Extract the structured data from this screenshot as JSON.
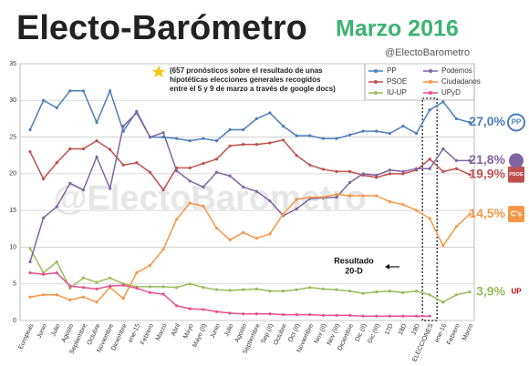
{
  "chart_data": {
    "type": "line",
    "title": "Electo-Barómetro",
    "subtitle": "Marzo 2016",
    "handle": "@ElectoBarometro",
    "watermark": "@ElectoBarometro",
    "note": [
      "(657 pronósticos sobre el resultado de unas",
      "hipotéticas elecciones generales recogidos",
      "entre el 5 y 9 de marzo a través de google docs)"
    ],
    "annotation": [
      "Resultado",
      "20-D"
    ],
    "categories": [
      "Europeas",
      "Junio",
      "Julio",
      "Agosto",
      "Septiembre",
      "Octubre",
      "Noviembre",
      "Diciembre",
      "ene-15",
      "Febrero",
      "Marzo",
      "Abril",
      "Mayo",
      "Mayo (II)",
      "Junio",
      "Julio",
      "Agosto",
      "Septiembre",
      "Sep (II)",
      "Octubre",
      "Oct (II)",
      "Noviembre",
      "Nov (II)",
      "Nov (III)",
      "Diciembre",
      "Dic (II)",
      "Dic (III)",
      "17D",
      "18D",
      "19D",
      "ELECCIONES",
      "ene-16",
      "Febrero",
      "Marzo"
    ],
    "series": [
      {
        "name": "PP",
        "color": "#4a7ebb",
        "end_label": "27,0%",
        "logo": "PP",
        "values": [
          26,
          30,
          29,
          31.3,
          31.3,
          27,
          31.3,
          25.8,
          28.5,
          25,
          25,
          24.8,
          24.5,
          24.8,
          24.5,
          26,
          26,
          27.5,
          28.3,
          26.5,
          25.2,
          25.2,
          24.8,
          24.8,
          25.3,
          25.8,
          25.8,
          25.5,
          26.5,
          25.5,
          28.7,
          29.8,
          27.5,
          27
        ]
      },
      {
        "name": "PSOE",
        "color": "#c0504d",
        "end_label": "19,9%",
        "logo": "PSOE",
        "values": [
          23,
          19.3,
          21.5,
          23.4,
          23.4,
          24.5,
          23.3,
          21.2,
          21.5,
          20.2,
          17.8,
          20.8,
          20.8,
          21.4,
          22,
          23.8,
          24,
          24,
          24.2,
          24.6,
          22.5,
          21.2,
          20.6,
          20.3,
          20.3,
          19.8,
          19.5,
          20,
          20,
          20.5,
          22,
          20.3,
          20.7,
          19.9
        ]
      },
      {
        "name": "IU-UP",
        "color": "#9bbb59",
        "end_label": "3,9%",
        "logo": "UP",
        "values": [
          9.8,
          6.5,
          8,
          4.4,
          5.8,
          5.2,
          5.8,
          5,
          4.6,
          4.6,
          4.6,
          4.5,
          5,
          4.5,
          4.2,
          4.1,
          4.2,
          4.3,
          4,
          4,
          4.2,
          4.5,
          4.3,
          4.2,
          4,
          3.7,
          3.9,
          4,
          3.8,
          4,
          3.5,
          2.5,
          3.5,
          3.9
        ]
      },
      {
        "name": "Podemos",
        "color": "#8064a2",
        "end_label": "21,8%",
        "values": [
          8,
          14,
          15.5,
          18.7,
          17.8,
          22.3,
          18,
          26.5,
          28.3,
          25,
          25.6,
          20.4,
          19,
          18.2,
          20.2,
          19.7,
          18.2,
          17.6,
          16.3,
          14.3,
          15.2,
          16.6,
          16.7,
          16.8,
          18.8,
          20,
          19.8,
          20.5,
          20.3,
          20.7,
          20.7,
          23.4,
          21.8,
          21.8
        ]
      },
      {
        "name": "Ciudadanos",
        "color": "#f79646",
        "end_label": "14,5%",
        "logo": "C's",
        "values": [
          3.2,
          3.5,
          3.5,
          2.8,
          3.2,
          2.5,
          4.5,
          3,
          6.5,
          7.5,
          9.7,
          13.8,
          16,
          15.6,
          12.6,
          11,
          12,
          11.2,
          11.8,
          14.5,
          16.5,
          16.8,
          16.8,
          17.2,
          17,
          17,
          17,
          16.2,
          15.8,
          15,
          13.9,
          10.2,
          12.8,
          14.5
        ]
      },
      {
        "name": "UPyD",
        "color": "#e8508f",
        "values": [
          6.5,
          6.3,
          6.5,
          4.7,
          4.5,
          4.3,
          4.7,
          4.8,
          4.4,
          3.8,
          3.6,
          2,
          1.6,
          1.5,
          1.2,
          1,
          0.9,
          0.9,
          0.9,
          0.8,
          0.8,
          0.8,
          0.7,
          0.7,
          0.7,
          0.6,
          0.6,
          0.6,
          0.6,
          0.6,
          0.6,
          null,
          null,
          null
        ]
      }
    ],
    "ylim": [
      0,
      35
    ],
    "yticks": [
      0,
      5,
      10,
      15,
      20,
      25,
      30,
      35
    ],
    "grid": true
  }
}
